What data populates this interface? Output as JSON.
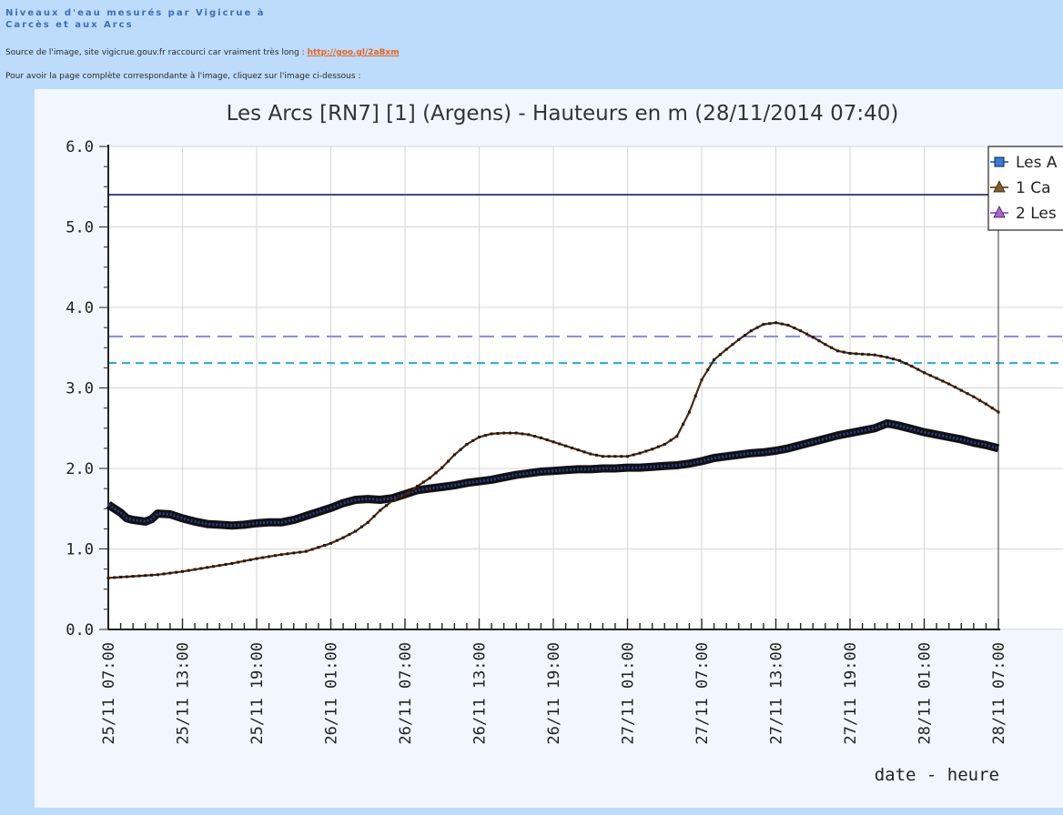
{
  "post": {
    "title_line1": "Niveaux d'eau mesurés par Vigicrue à",
    "title_line2": "Carcès et aux Arcs",
    "source_text": "Source de l'image, site vigicrue.gouv.fr raccourci car vraiment très long : ",
    "source_link": "http://goo.gl/2aBxm",
    "instruction": "Pour avoir la page complète correspondante à l'image, cliquez sur l'image ci-dessous :"
  },
  "colors": {
    "page_bg": "#bddcfb",
    "chart_bg": "#f2f7ff",
    "plot_bg": "#ffffff",
    "grid": "#d6d6d6",
    "threshold_solid": "#1c1c6e",
    "threshold_dash_purple": "#8888dd",
    "threshold_dash_cyan": "#22aadd",
    "series_les_arcs": "#2a3a8c",
    "series_carces": "#4a2a12"
  },
  "chart_data": {
    "type": "line",
    "title": "Les Arcs [RN7] [1] (Argens) - Hauteurs en m (28/11/2014 07:40)",
    "xlabel": "date - heure",
    "ylabel": "",
    "ylim": [
      0,
      6
    ],
    "xlim_hours": [
      0,
      72
    ],
    "y_ticks": [
      "0.0",
      "1.0",
      "2.0",
      "3.0",
      "4.0",
      "5.0",
      "6.0"
    ],
    "x_ticks": [
      "25/11 07:00",
      "25/11 13:00",
      "25/11 19:00",
      "26/11 01:00",
      "26/11 07:00",
      "26/11 13:00",
      "26/11 19:00",
      "27/11 01:00",
      "27/11 07:00",
      "27/11 13:00",
      "27/11 19:00",
      "28/11 01:00",
      "28/11 07:00"
    ],
    "grid": true,
    "legend_position": "top-right",
    "legend": [
      {
        "marker": "square",
        "color": "#3a7ad8",
        "label": "Les A"
      },
      {
        "marker": "triangle",
        "color": "#8a5a2a",
        "label": "1 Ca"
      },
      {
        "marker": "triangle",
        "color": "#b060d8",
        "label": "2 Les"
      }
    ],
    "thresholds": [
      {
        "value": 5.4,
        "style": "solid",
        "color": "#1c1c6e"
      },
      {
        "value": 3.64,
        "style": "dashed",
        "color": "#8888dd"
      },
      {
        "value": 3.31,
        "style": "dashed",
        "color": "#22aadd"
      }
    ],
    "series": [
      {
        "color": "#2a3a8c",
        "hours": [
          0,
          1,
          1.5,
          2,
          2.5,
          3,
          3.5,
          4,
          5,
          6,
          7,
          8,
          9,
          10,
          11,
          12,
          13,
          14,
          15,
          16,
          17,
          18,
          19,
          20,
          21,
          22,
          23,
          24,
          25,
          26,
          27,
          28,
          29,
          30,
          31,
          32,
          33,
          34,
          35,
          36,
          37,
          38,
          39,
          40,
          41,
          42,
          43,
          44,
          45,
          46,
          47,
          48,
          49,
          50,
          51,
          52,
          53,
          54,
          55,
          56,
          57,
          58,
          59,
          60,
          61,
          62,
          63,
          64,
          65,
          66,
          67,
          68,
          69,
          70,
          71,
          72
        ],
        "values": [
          1.55,
          1.45,
          1.38,
          1.36,
          1.35,
          1.34,
          1.37,
          1.44,
          1.43,
          1.38,
          1.34,
          1.31,
          1.3,
          1.29,
          1.3,
          1.32,
          1.33,
          1.33,
          1.36,
          1.41,
          1.46,
          1.51,
          1.57,
          1.61,
          1.62,
          1.61,
          1.63,
          1.68,
          1.73,
          1.75,
          1.77,
          1.79,
          1.82,
          1.84,
          1.86,
          1.89,
          1.92,
          1.94,
          1.96,
          1.97,
          1.98,
          1.99,
          1.99,
          2.0,
          2.0,
          2.01,
          2.01,
          2.02,
          2.03,
          2.04,
          2.06,
          2.09,
          2.13,
          2.15,
          2.17,
          2.19,
          2.2,
          2.22,
          2.25,
          2.29,
          2.33,
          2.37,
          2.41,
          2.44,
          2.47,
          2.5,
          2.56,
          2.53,
          2.49,
          2.45,
          2.42,
          2.39,
          2.36,
          2.32,
          2.29,
          2.25
        ]
      },
      {
        "color": "#4a2a12",
        "hours": [
          0,
          2,
          4,
          6,
          8,
          10,
          12,
          14,
          16,
          18,
          19,
          20,
          21,
          22,
          23,
          24,
          25,
          26,
          27,
          28,
          29,
          30,
          31,
          32,
          33,
          34,
          35,
          36,
          37,
          38,
          39,
          40,
          41,
          42,
          43,
          44,
          45,
          46,
          47,
          48,
          49,
          50,
          51,
          52,
          53,
          54,
          55,
          56,
          57,
          58,
          59,
          60,
          61,
          62,
          63,
          64,
          65,
          66,
          67,
          68,
          69,
          70,
          71,
          72
        ],
        "values": [
          0.64,
          0.66,
          0.68,
          0.72,
          0.77,
          0.82,
          0.88,
          0.93,
          0.97,
          1.07,
          1.14,
          1.22,
          1.33,
          1.48,
          1.6,
          1.67,
          1.78,
          1.88,
          2.01,
          2.17,
          2.3,
          2.39,
          2.43,
          2.44,
          2.44,
          2.42,
          2.38,
          2.33,
          2.28,
          2.23,
          2.18,
          2.15,
          2.15,
          2.15,
          2.19,
          2.24,
          2.3,
          2.4,
          2.7,
          3.1,
          3.35,
          3.48,
          3.6,
          3.71,
          3.79,
          3.81,
          3.78,
          3.71,
          3.63,
          3.54,
          3.46,
          3.43,
          3.42,
          3.41,
          3.38,
          3.34,
          3.27,
          3.19,
          3.12,
          3.05,
          2.97,
          2.89,
          2.8,
          2.7
        ]
      }
    ]
  }
}
